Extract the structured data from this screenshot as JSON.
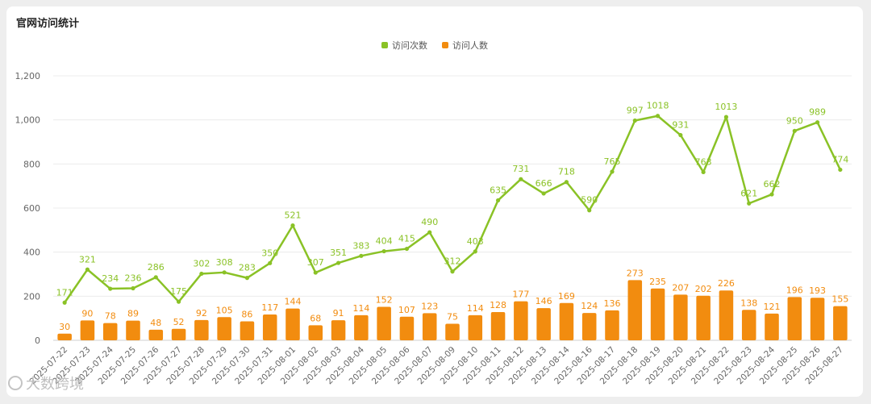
{
  "title": "官网访问统计",
  "watermark_text": "大数跨境",
  "colors": {
    "line": "#8ac226",
    "bar": "#f28c0f",
    "grid": "#ececec",
    "axis_text": "#666666"
  },
  "chart_data": {
    "type": "bar",
    "categories": [
      "2025-07-22",
      "2025-07-23",
      "2025-07-24",
      "2025-07-25",
      "2025-07-26",
      "2025-07-27",
      "2025-07-28",
      "2025-07-29",
      "2025-07-30",
      "2025-07-31",
      "2025-08-01",
      "2025-08-02",
      "2025-08-03",
      "2025-08-04",
      "2025-08-05",
      "2025-08-06",
      "2025-08-07",
      "2025-08-09",
      "2025-08-10",
      "2025-08-11",
      "2025-08-12",
      "2025-08-13",
      "2025-08-14",
      "2025-08-16",
      "2025-08-17",
      "2025-08-18",
      "2025-08-19",
      "2025-08-20",
      "2025-08-21",
      "2025-08-22",
      "2025-08-23",
      "2025-08-24",
      "2025-08-25",
      "2025-08-26",
      "2025-08-27"
    ],
    "series": [
      {
        "name": "访问次数",
        "type": "line",
        "values": [
          171,
          321,
          234,
          236,
          286,
          175,
          302,
          308,
          283,
          350,
          521,
          307,
          351,
          383,
          404,
          415,
          490,
          312,
          403,
          635,
          731,
          666,
          718,
          590,
          765,
          997,
          1018,
          931,
          763,
          1013,
          621,
          662,
          950,
          989,
          774
        ]
      },
      {
        "name": "访问人数",
        "type": "bar",
        "values": [
          30,
          90,
          78,
          89,
          48,
          52,
          92,
          105,
          86,
          117,
          144,
          68,
          91,
          114,
          152,
          107,
          123,
          75,
          114,
          128,
          177,
          146,
          169,
          124,
          136,
          273,
          235,
          207,
          202,
          226,
          138,
          121,
          196,
          193,
          155
        ]
      }
    ],
    "y_ticks": [
      "0",
      "200",
      "400",
      "600",
      "800",
      "1,000",
      "1,200"
    ],
    "ylim": [
      0,
      1200
    ],
    "legend_position": "top-center",
    "grid": true
  }
}
